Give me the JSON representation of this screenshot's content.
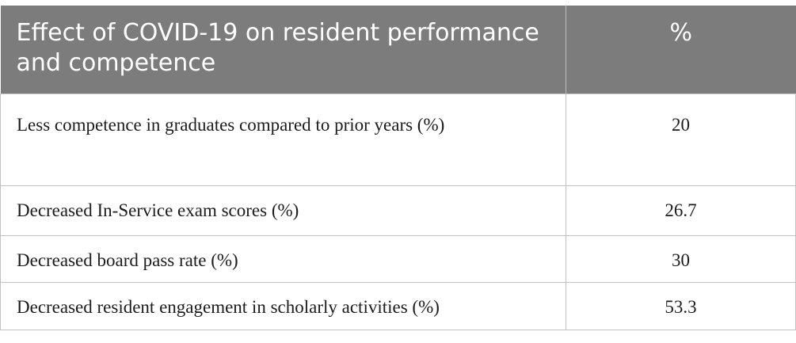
{
  "table": {
    "headers": {
      "label": "Effect of COVID-19 on resident performance and competence",
      "value": "%"
    },
    "rows": [
      {
        "label": "Less competence in graduates compared to prior years (%)",
        "value": "20"
      },
      {
        "label": "Decreased In-Service exam scores (%)",
        "value": "26.7"
      },
      {
        "label": "Decreased board pass rate (%)",
        "value": "30"
      },
      {
        "label": "Decreased resident engagement in scholarly activities (%)",
        "value": "53.3"
      }
    ]
  },
  "colors": {
    "header_background": "#7b7c7b",
    "header_text": "#ffffff",
    "border": "#c2c2c2"
  }
}
